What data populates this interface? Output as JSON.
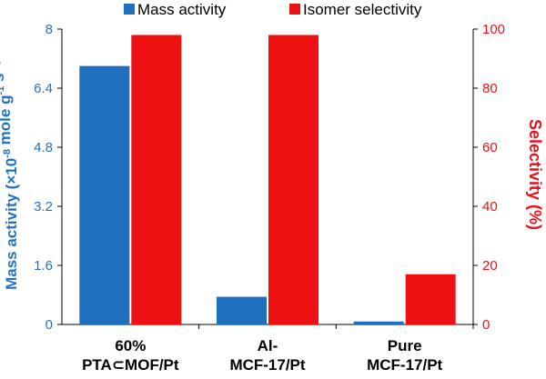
{
  "chart_data": {
    "type": "bar",
    "categories": [
      [
        "60%",
        "PTA⊂MOF/Pt"
      ],
      [
        "Al-",
        "MCF-17/Pt"
      ],
      [
        "Pure",
        "MCF-17/Pt"
      ]
    ],
    "series": [
      {
        "name": "Mass activity",
        "axis": "left",
        "color": "#1f6fbf",
        "values": [
          7.0,
          0.75,
          0.08
        ]
      },
      {
        "name": "Isomer selectivity",
        "axis": "right",
        "color": "#ee1111",
        "values": [
          98,
          98,
          17
        ]
      }
    ],
    "ylabel_left": {
      "base": "Mass activity (×10",
      "sup1": "-8",
      "mid1": " mole g",
      "sup2": "-1",
      "mid2": " s",
      "sup3": "-1",
      "end": ")"
    },
    "ylabel_right": "Selectivity (%)",
    "ylim_left": [
      0,
      8
    ],
    "ylim_right": [
      0,
      100
    ],
    "yticks_left": [
      "0",
      "1.6",
      "3.2",
      "4.8",
      "6.4",
      "8"
    ],
    "yticks_right": [
      "0",
      "20",
      "40",
      "60",
      "80",
      "100"
    ],
    "legend_position": "top",
    "grid": false,
    "colors": {
      "left_axis": "#2272c3",
      "right_axis": "#e8101b"
    }
  }
}
